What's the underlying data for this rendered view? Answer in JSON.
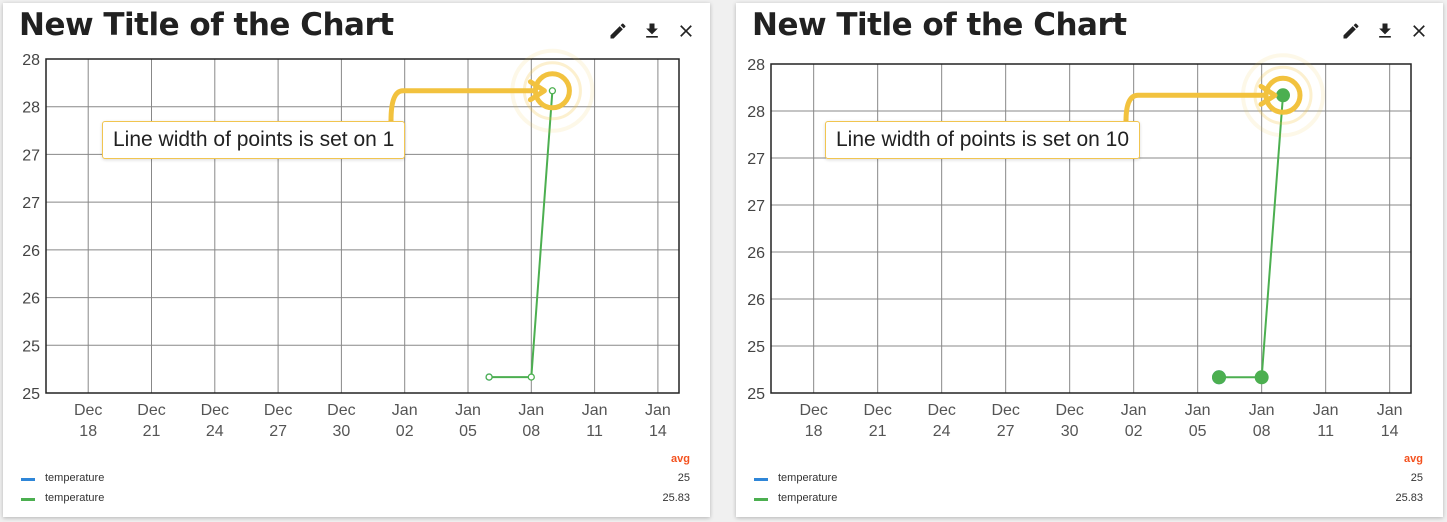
{
  "panels": [
    {
      "title": "New Title of the Chart",
      "annotation": "Line width of points is set on 1",
      "point_line_width": 1,
      "legend": {
        "header": "avg",
        "items": [
          {
            "name": "temperature",
            "value": "25",
            "color": "#2f86d8"
          },
          {
            "name": "temperature",
            "value": "25.83",
            "color": "#4caf50"
          }
        ]
      }
    },
    {
      "title": "New Title of the Chart",
      "annotation": "Line width of points is set on 10",
      "point_line_width": 10,
      "legend": {
        "header": "avg",
        "items": [
          {
            "name": "temperature",
            "value": "25",
            "color": "#2f86d8"
          },
          {
            "name": "temperature",
            "value": "25.83",
            "color": "#4caf50"
          }
        ]
      }
    }
  ],
  "colors": {
    "highlight": "#f2c23e",
    "grid": "#888888",
    "axis": "#222222"
  },
  "chart_data": [
    {
      "type": "line",
      "title": "New Title of the Chart",
      "xlabel": "",
      "ylabel": "",
      "x_tick_labels": [
        [
          "Dec",
          "18"
        ],
        [
          "Dec",
          "21"
        ],
        [
          "Dec",
          "24"
        ],
        [
          "Dec",
          "27"
        ],
        [
          "Dec",
          "30"
        ],
        [
          "Jan",
          "02"
        ],
        [
          "Jan",
          "05"
        ],
        [
          "Jan",
          "08"
        ],
        [
          "Jan",
          "11"
        ],
        [
          "Jan",
          "14"
        ]
      ],
      "x_range": [
        "Dec 16",
        "Jan 15"
      ],
      "y_tick_labels": [
        "28",
        "28",
        "27",
        "27",
        "26",
        "26",
        "25",
        "25"
      ],
      "ylim": [
        24.833,
        28.333
      ],
      "grid": true,
      "series": [
        {
          "name": "temperature",
          "color": "#2f86d8",
          "points": [
            [
              "Jan 06",
              25
            ]
          ]
        },
        {
          "name": "temperature",
          "color": "#4caf50",
          "points": [
            [
              "Jan 06",
              25
            ],
            [
              "Jan 08",
              25
            ],
            [
              "Jan 09",
              28
            ]
          ]
        }
      ]
    },
    {
      "type": "line",
      "title": "New Title of the Chart",
      "xlabel": "",
      "ylabel": "",
      "x_tick_labels": [
        [
          "Dec",
          "18"
        ],
        [
          "Dec",
          "21"
        ],
        [
          "Dec",
          "24"
        ],
        [
          "Dec",
          "27"
        ],
        [
          "Dec",
          "30"
        ],
        [
          "Jan",
          "02"
        ],
        [
          "Jan",
          "05"
        ],
        [
          "Jan",
          "08"
        ],
        [
          "Jan",
          "11"
        ],
        [
          "Jan",
          "14"
        ]
      ],
      "x_range": [
        "Dec 16",
        "Jan 15"
      ],
      "y_tick_labels": [
        "28",
        "28",
        "27",
        "27",
        "26",
        "26",
        "25",
        "25"
      ],
      "ylim": [
        24.833,
        28.333
      ],
      "grid": true,
      "series": [
        {
          "name": "temperature",
          "color": "#2f86d8",
          "points": [
            [
              "Jan 06",
              25
            ]
          ]
        },
        {
          "name": "temperature",
          "color": "#4caf50",
          "points": [
            [
              "Jan 06",
              25
            ],
            [
              "Jan 08",
              25
            ],
            [
              "Jan 09",
              28
            ]
          ]
        }
      ]
    }
  ]
}
